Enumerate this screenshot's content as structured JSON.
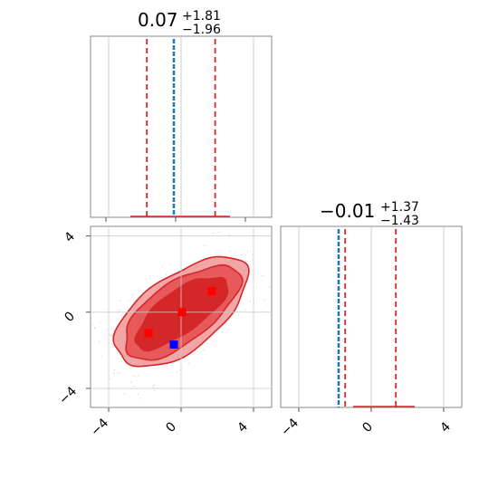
{
  "chart_data": [
    {
      "type": "histogram",
      "panel": "marginal-1",
      "title": {
        "value": "0.07",
        "plus": "+1.81",
        "minus": "−1.96"
      },
      "xlim": [
        -5,
        5
      ],
      "quantiles": [
        -1.89,
        1.88
      ],
      "truth": -0.4,
      "hist_line": [
        -2.8,
        2.7
      ],
      "color_quantile": "#d62728",
      "color_truth": "#1f77b4"
    },
    {
      "type": "histogram",
      "panel": "marginal-2",
      "title": {
        "value": "−0.01",
        "plus": "+1.37",
        "minus": "−1.43"
      },
      "xlim": [
        -5,
        5
      ],
      "quantiles": [
        -1.44,
        1.36
      ],
      "truth": -1.8,
      "hist_line": [
        -1.0,
        2.4
      ],
      "color_quantile": "#d62728",
      "color_truth": "#1f77b4"
    },
    {
      "type": "contour",
      "panel": "joint",
      "xlim": [
        -5,
        5
      ],
      "ylim": [
        -5,
        4.5
      ],
      "xticks": [
        "−4",
        "0",
        "4"
      ],
      "yticks": [
        "−4",
        "0",
        "4"
      ],
      "x2ticks": [
        "−4",
        "0",
        "4"
      ],
      "red_markers": [
        [
          -1.8,
          -1.1
        ],
        [
          1.7,
          1.1
        ],
        [
          0.05,
          0.0
        ]
      ],
      "blue_marker": [
        -0.4,
        -1.7
      ],
      "contour_colors": [
        "#f2a6a6",
        "#e8595c",
        "#d62728"
      ],
      "grid": true
    }
  ]
}
